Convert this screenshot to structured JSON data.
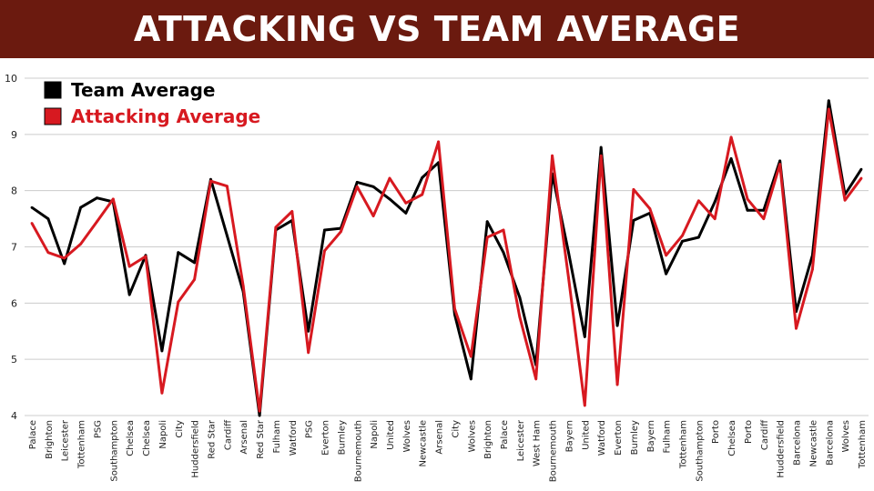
{
  "header": {
    "title": "ATTACKING VS TEAM AVERAGE"
  },
  "colors": {
    "header_bg": "#6b1a0f",
    "team": "#000000",
    "attacking": "#d71920",
    "grid": "#cccccc"
  },
  "chart_data": {
    "type": "line",
    "title": "ATTACKING VS TEAM AVERAGE",
    "xlabel": "",
    "ylabel": "",
    "ylim": [
      4,
      10
    ],
    "yticks": [
      4,
      5,
      6,
      7,
      8,
      9,
      10
    ],
    "grid": true,
    "legend_position": "top-left",
    "categories": [
      "Palace",
      "Brighton",
      "Leicester",
      "Tottenham",
      "PSG",
      "Southampton",
      "Chelsea",
      "Chelsea",
      "Napoli",
      "City",
      "Huddersfield",
      "Red Star",
      "Cardiff",
      "Arsenal",
      "Red Star",
      "Fulham",
      "Watford",
      "PSG",
      "Everton",
      "Burnley",
      "Bournemouth",
      "Napoli",
      "United",
      "Wolves",
      "Newcastle",
      "Arsenal",
      "City",
      "Wolves",
      "Brighton",
      "Palace",
      "Leicester",
      "West Ham",
      "Bournemouth",
      "Bayern",
      "United",
      "Watford",
      "Everton",
      "Burnley",
      "Bayern",
      "Fulham",
      "Tottenham",
      "Southampton",
      "Porto",
      "Chelsea",
      "Porto",
      "Cardiff",
      "Huddersfield",
      "Barcelona",
      "Newcastle",
      "Barcelona",
      "Wolves",
      "Tottenham"
    ],
    "series": [
      {
        "name": "Team Average",
        "color": "#000000",
        "values": [
          7.7,
          7.5,
          6.7,
          7.7,
          7.87,
          7.8,
          6.15,
          6.85,
          5.15,
          6.9,
          6.72,
          8.2,
          7.2,
          6.2,
          4.0,
          7.3,
          7.47,
          5.5,
          7.3,
          7.33,
          8.15,
          8.07,
          7.85,
          7.6,
          8.23,
          8.5,
          5.8,
          4.65,
          7.45,
          6.9,
          6.1,
          4.9,
          8.3,
          6.9,
          5.4,
          8.77,
          5.6,
          7.47,
          7.6,
          6.52,
          7.1,
          7.17,
          7.8,
          8.57,
          7.65,
          7.65,
          8.53,
          5.85,
          6.85,
          9.6,
          7.93,
          8.38
        ]
      },
      {
        "name": "Attacking Average",
        "color": "#d71920",
        "values": [
          7.42,
          6.9,
          6.8,
          7.05,
          7.45,
          7.85,
          6.65,
          6.83,
          4.4,
          6.02,
          6.42,
          8.17,
          8.08,
          6.3,
          4.08,
          7.35,
          7.63,
          5.12,
          6.93,
          7.27,
          8.07,
          7.55,
          8.22,
          7.78,
          7.93,
          8.87,
          5.9,
          5.05,
          7.17,
          7.3,
          5.75,
          4.65,
          8.62,
          6.45,
          4.18,
          8.62,
          4.55,
          8.02,
          7.68,
          6.85,
          7.2,
          7.82,
          7.5,
          8.95,
          7.85,
          7.5,
          8.47,
          5.55,
          6.6,
          9.45,
          7.83,
          8.22
        ]
      }
    ]
  }
}
